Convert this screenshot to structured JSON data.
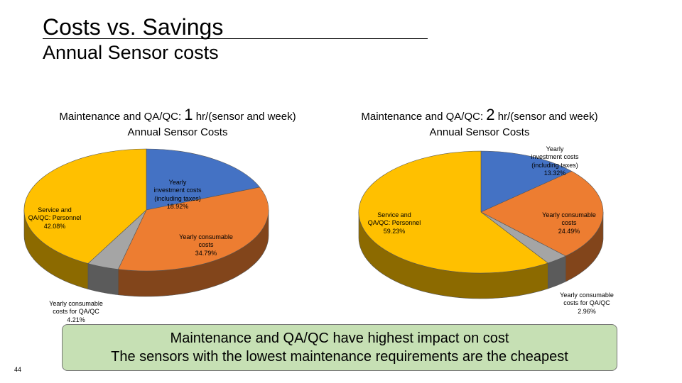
{
  "slide": {
    "title": "Costs vs. Savings",
    "subtitle": "Annual Sensor costs",
    "callout_line1": "Maintenance and QA/QC have highest impact on cost",
    "callout_line2": "The sensors with the lowest maintenance requirements are the cheapest",
    "page_number": "44"
  },
  "chart_data": [
    {
      "type": "pie",
      "title_prefix": "Maintenance and QA/QC: ",
      "title_value": "1",
      "title_suffix": " hr/(sensor and week)",
      "title_line2": "Annual Sensor Costs",
      "slices": [
        {
          "label": "Yearly investment costs (including taxes)",
          "value": 18.92,
          "display": "18.92%",
          "color": "#4472c4",
          "label_lines": [
            "Yearly",
            "investment costs",
            "(including taxes)"
          ]
        },
        {
          "label": "Yearly consumable costs",
          "value": 34.79,
          "display": "34.79%",
          "color": "#ed7d31",
          "label_lines": [
            "Yearly consumable",
            "costs"
          ]
        },
        {
          "label": "Yearly consumable costs for QA/QC",
          "value": 4.21,
          "display": "4.21%",
          "color": "#a5a5a5",
          "label_lines": [
            "Yearly consumable",
            "costs for QA/QC"
          ]
        },
        {
          "label": "Service and QA/QC: Personnel",
          "value": 42.08,
          "display": "42.08%",
          "color": "#ffc000",
          "label_lines": [
            "Service and",
            "QA/QC: Personnel"
          ]
        }
      ]
    },
    {
      "type": "pie",
      "title_prefix": "Maintenance and QA/QC: ",
      "title_value": "2",
      "title_suffix": " hr/(sensor and week)",
      "title_line2": "Annual Sensor Costs",
      "slices": [
        {
          "label": "Yearly investment costs (including taxes)",
          "value": 13.32,
          "display": "13.32%",
          "color": "#4472c4",
          "label_lines": [
            "Yearly",
            "investment costs",
            "(including taxes)"
          ]
        },
        {
          "label": "Yearly consumable costs",
          "value": 24.49,
          "display": "24.49%",
          "color": "#ed7d31",
          "label_lines": [
            "Yearly consumable",
            "costs"
          ]
        },
        {
          "label": "Yearly consumable costs for QA/QC",
          "value": 2.96,
          "display": "2.96%",
          "color": "#a5a5a5",
          "label_lines": [
            "Yearly consumable",
            "costs for QA/QC"
          ]
        },
        {
          "label": "Service and QA/QC: Personnel",
          "value": 59.23,
          "display": "59.23%",
          "color": "#ffc000",
          "label_lines": [
            "Service and",
            "QA/QC: Personnel"
          ]
        }
      ]
    }
  ]
}
